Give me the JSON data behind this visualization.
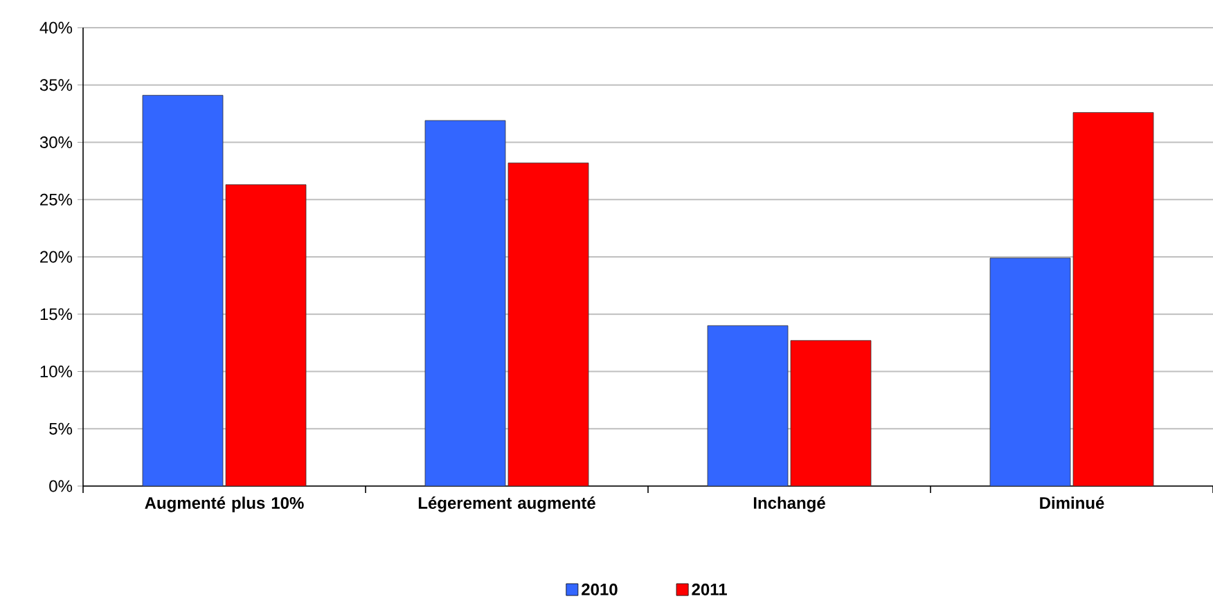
{
  "chart_data": {
    "type": "bar",
    "categories": [
      "Augmenté plus 10%",
      "Légerement augmenté",
      "Inchangé",
      "Diminué"
    ],
    "series": [
      {
        "name": "2010",
        "color": "#3366ff",
        "values": [
          34.1,
          31.9,
          14.0,
          19.9
        ]
      },
      {
        "name": "2011",
        "color": "#ff0000",
        "values": [
          26.3,
          28.2,
          12.7,
          32.6
        ]
      }
    ],
    "ylim": [
      0,
      40
    ],
    "yticks": [
      {
        "value": 0,
        "label": "0%"
      },
      {
        "value": 5,
        "label": "5%"
      },
      {
        "value": 10,
        "label": "10%"
      },
      {
        "value": 15,
        "label": "15%"
      },
      {
        "value": 20,
        "label": "20%"
      },
      {
        "value": 25,
        "label": "25%"
      },
      {
        "value": 30,
        "label": "30%"
      },
      {
        "value": 35,
        "label": "35%"
      },
      {
        "value": 40,
        "label": "40%"
      }
    ],
    "grid": "y",
    "legend": "bottom"
  }
}
